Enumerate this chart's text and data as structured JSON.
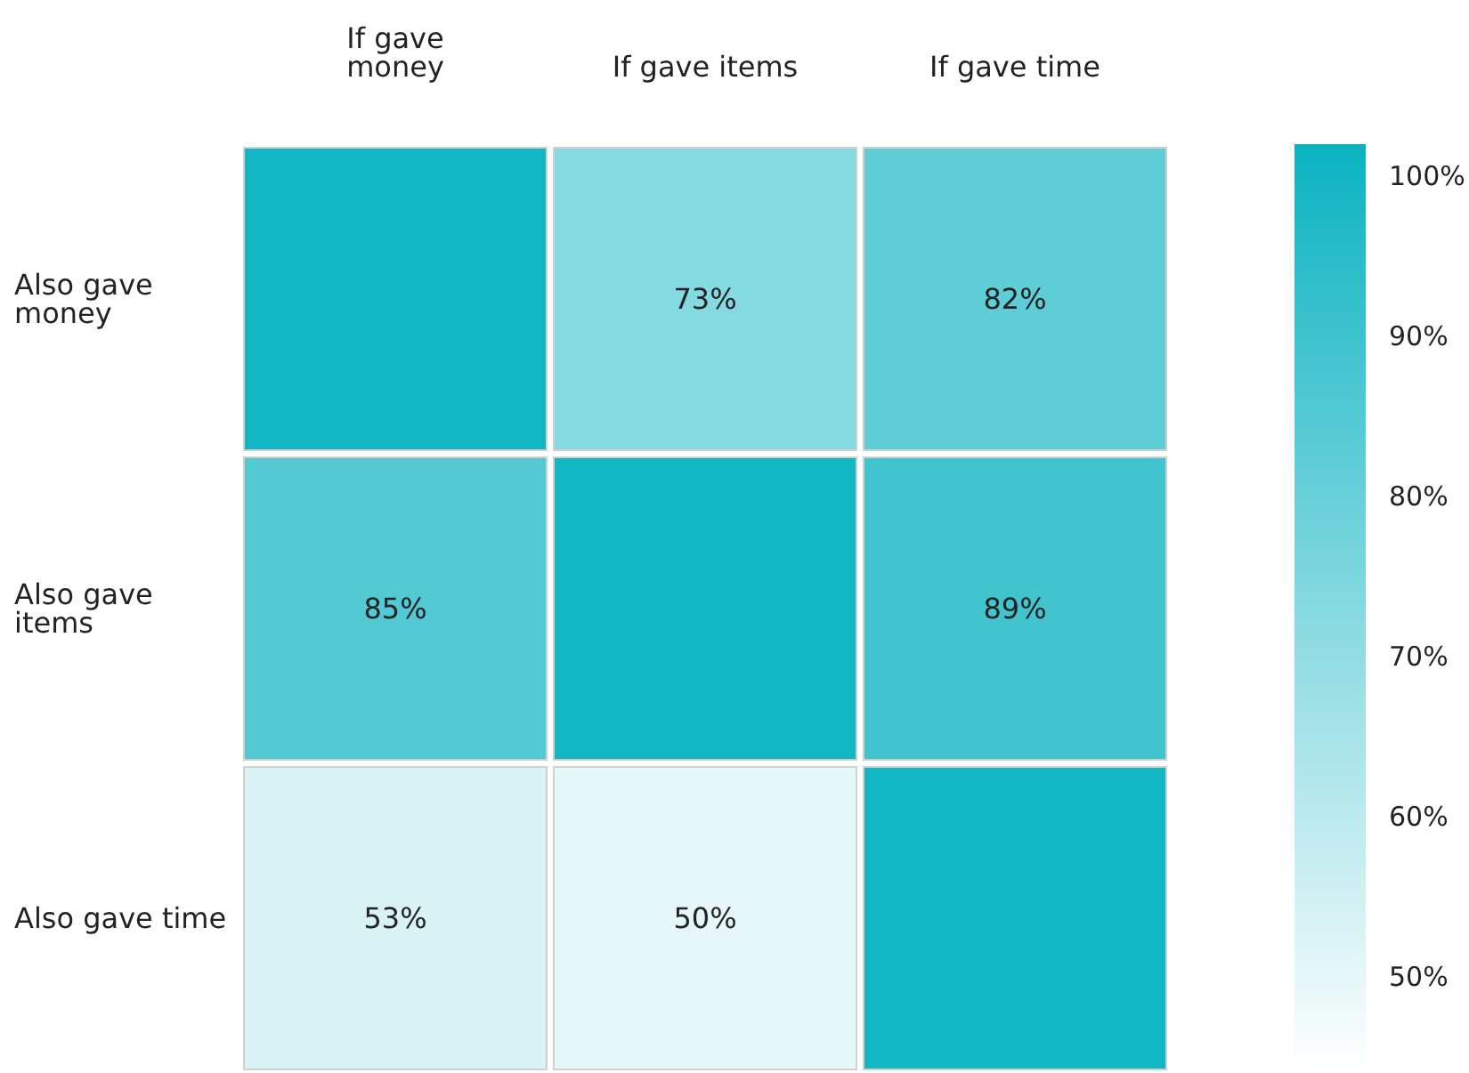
{
  "chart_data": {
    "type": "heatmap",
    "categories": [
      "If gave money",
      "If gave items",
      "If gave time"
    ],
    "y_categories": [
      "Also gave money",
      "Also gave items",
      "Also gave time"
    ],
    "cells": [
      [
        100,
        73,
        82
      ],
      [
        85,
        100,
        89
      ],
      [
        53,
        50,
        100
      ]
    ],
    "cell_labels": [
      [
        null,
        "73%",
        "82%"
      ],
      [
        "85%",
        null,
        "89%"
      ],
      [
        "53%",
        "50%",
        null
      ]
    ],
    "clim": [
      44,
      102
    ],
    "cticks": [
      {
        "value": 50,
        "label": "50%"
      },
      {
        "value": 60,
        "label": "60%"
      },
      {
        "value": 70,
        "label": "70%"
      },
      {
        "value": 80,
        "label": "80%"
      },
      {
        "value": 90,
        "label": "90%"
      },
      {
        "value": 100,
        "label": "100%"
      }
    ]
  }
}
